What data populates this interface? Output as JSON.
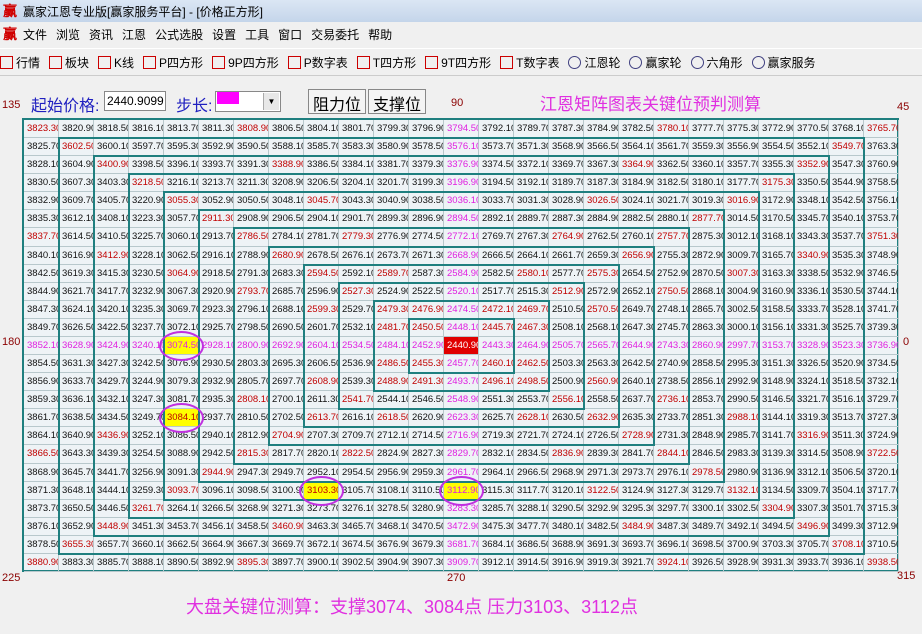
{
  "window": {
    "title": "赢家江恩专业版[赢家服务平台] - [价格正方形]",
    "logo": "赢"
  },
  "menu": [
    "文件",
    "浏览",
    "资讯",
    "江恩",
    "公式选股",
    "设置",
    "工具",
    "窗口",
    "交易委托",
    "帮助"
  ],
  "toolbar": [
    {
      "icon": "quote-table-icon",
      "label": "行情"
    },
    {
      "icon": "sector-icon",
      "label": "板块"
    },
    {
      "icon": "kline-icon",
      "label": "K线"
    },
    {
      "icon": "p-square-icon",
      "label": "P四方形"
    },
    {
      "icon": "9p-square-icon",
      "label": "9P四方形"
    },
    {
      "icon": "p-number-icon",
      "label": "P数字表"
    },
    {
      "icon": "t-square-icon",
      "label": "T四方形"
    },
    {
      "icon": "9t-square-icon",
      "label": "9T四方形"
    },
    {
      "icon": "t-number-icon",
      "label": "T数字表"
    },
    {
      "icon": "gann-wheel-icon",
      "label": "江恩轮"
    },
    {
      "icon": "winner-wheel-icon",
      "label": "赢家轮"
    },
    {
      "icon": "hexagon-icon",
      "label": "六角形"
    },
    {
      "icon": "dollar-icon",
      "label": "赢家服务"
    }
  ],
  "controls": {
    "start_price_label": "起始价格:",
    "start_price_value": "2440.9099",
    "step_label": "步长:",
    "resistance_button": "阻力位",
    "support_button": "支撑位"
  },
  "heading": "江恩矩阵图表关键位预判测算",
  "angles": {
    "a135": "135",
    "a90": "90",
    "a45": "45",
    "a180": "180",
    "a0": "0",
    "a225": "225",
    "a270": "270",
    "a315": "315"
  },
  "grid": {
    "size": 25,
    "start_value": 2440.9099,
    "step": 2.4,
    "highlighted_values": [
      "3074.50",
      "3084.10",
      "3103.30",
      "3112.90"
    ]
  },
  "colors": {
    "cross": "#e020e0",
    "diagonal": "#c00000",
    "center_bg": "#e00000",
    "highlight_bg": "#ffff00",
    "ring": "#1f7f7f",
    "ellipse": "#c030e0"
  },
  "footer": "大盘关键位测算：支撑3074、3084点    压力3103、3112点"
}
